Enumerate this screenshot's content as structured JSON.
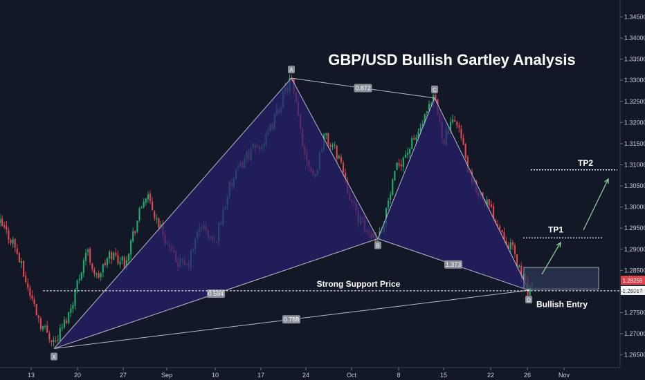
{
  "chart_data": {
    "type": "candlestick",
    "title": "GBP/USD Bullish Gartley Analysis",
    "colors": {
      "background": "#121826",
      "up_candle": "#22a86a",
      "down_candle": "#e0444e",
      "pattern_fill": "#26206e",
      "pattern_line": "#b8bccb",
      "label_bg": "#8a8f9a",
      "last_price": "#e0444e",
      "support_tag": "#ffffff",
      "arrow": "#8fcf9a",
      "box": "#2d3a55"
    },
    "x_axis": {
      "ticks": [
        "13",
        "20",
        "27",
        "Sep",
        "10",
        "17",
        "24",
        "Oct",
        "8",
        "15",
        "22",
        "26",
        "Nov"
      ]
    },
    "y_axis": {
      "range": [
        1.262,
        1.349
      ],
      "ticks": [
        "1.34500",
        "1.34000",
        "1.33500",
        "1.33000",
        "1.32500",
        "1.32000",
        "1.31500",
        "1.31000",
        "1.30500",
        "1.30000",
        "1.29500",
        "1.29000",
        "1.28500",
        "1.28000",
        "1.27500",
        "1.27000",
        "1.26500"
      ],
      "last_price_label": "1.28259",
      "last_price": 1.28259,
      "support_label": "1.28017",
      "support_price": 1.28017
    },
    "pattern": {
      "points": [
        {
          "name": "X",
          "price": 1.2665
        },
        {
          "name": "A",
          "price": 1.3305
        },
        {
          "name": "B",
          "price": 1.2925
        },
        {
          "name": "C",
          "price": 1.3258
        },
        {
          "name": "D",
          "price": 1.2803
        }
      ],
      "ratios": [
        {
          "label": "0.872",
          "between": "A-C"
        },
        {
          "label": "0.594",
          "between": "X-B"
        },
        {
          "label": "1.373",
          "between": "B-D"
        },
        {
          "label": "0.788",
          "between": "X-D"
        }
      ]
    },
    "annotations": {
      "support": "Strong Support Price",
      "tp1": "TP1",
      "tp2": "TP2",
      "entry": "Bullish Entry",
      "tp1_price": 1.2927,
      "tp2_price": 1.3088,
      "entry_zone": [
        1.2806,
        1.2857
      ]
    },
    "key_closes": [
      1.296,
      1.2915,
      1.281,
      1.272,
      1.268,
      1.275,
      1.29,
      1.283,
      1.289,
      1.287,
      1.303,
      1.294,
      1.288,
      1.2855,
      1.296,
      1.291,
      1.304,
      1.312,
      1.316,
      1.3305,
      1.313,
      1.307,
      1.317,
      1.312,
      1.3,
      1.294,
      1.293,
      1.31,
      1.316,
      1.3258,
      1.316,
      1.321,
      1.306,
      1.302,
      1.296,
      1.29,
      1.2803,
      1.2826
    ]
  }
}
